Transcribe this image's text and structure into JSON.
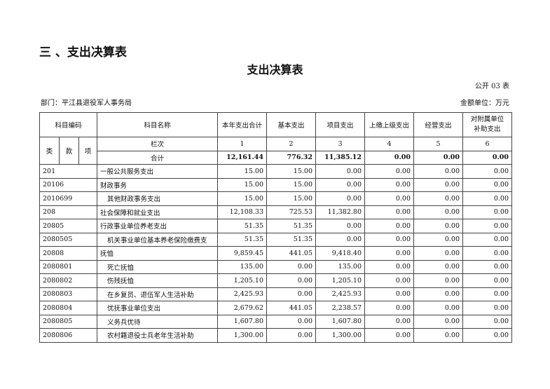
{
  "section_heading": "三 、支出决算表",
  "title": "支出决算表",
  "form_no": "公开 03 表",
  "department": "部门：平江县退役军人事务局",
  "unit": "金额单位：万元",
  "headers": {
    "code": "科目编码",
    "name": "科目名称",
    "lei": "类",
    "kuan": "款",
    "xiang": "项",
    "lanci": "栏次",
    "total_label": "合计",
    "cols": [
      "本年支出合计",
      "基本支出",
      "项目支出",
      "上缴上级支出",
      "经营支出",
      "对附属单位补助支出"
    ],
    "col_nums": [
      "1",
      "2",
      "3",
      "4",
      "5",
      "6"
    ]
  },
  "totals": [
    "12,161.44",
    "776.32",
    "11,385.12",
    "0.00",
    "0.00",
    "0.00"
  ],
  "rows": [
    {
      "code": "201",
      "name": "一般公共服务支出",
      "indent": false,
      "v": [
        "15.00",
        "15.00",
        "0.00",
        "0.00",
        "0.00",
        "0.00"
      ]
    },
    {
      "code": "20106",
      "name": "财政事务",
      "indent": false,
      "v": [
        "15.00",
        "15.00",
        "0.00",
        "0.00",
        "0.00",
        "0.00"
      ]
    },
    {
      "code": "2010699",
      "name": "其他财政事务支出",
      "indent": true,
      "v": [
        "15.00",
        "15.00",
        "0.00",
        "0.00",
        "0.00",
        "0.00"
      ]
    },
    {
      "code": "208",
      "name": "社会保障和就业支出",
      "indent": false,
      "v": [
        "12,108.33",
        "725.53",
        "11,382.80",
        "0.00",
        "0.00",
        "0.00"
      ]
    },
    {
      "code": "20805",
      "name": "行政事业单位养老支出",
      "indent": false,
      "v": [
        "51.35",
        "51.35",
        "0.00",
        "0.00",
        "0.00",
        "0.00"
      ]
    },
    {
      "code": "2080505",
      "name": "机关事业单位基本养老保险缴费支",
      "indent": true,
      "v": [
        "51.35",
        "51.35",
        "0.00",
        "0.00",
        "0.00",
        "0.00"
      ]
    },
    {
      "code": "20808",
      "name": "抚恤",
      "indent": false,
      "v": [
        "9,859.45",
        "441.05",
        "9,418.40",
        "0.00",
        "0.00",
        "0.00"
      ]
    },
    {
      "code": "2080801",
      "name": "死亡抚恤",
      "indent": true,
      "v": [
        "135.00",
        "0.00",
        "135.00",
        "0.00",
        "0.00",
        "0.00"
      ]
    },
    {
      "code": "2080802",
      "name": "伤残抚恤",
      "indent": true,
      "v": [
        "1,205.10",
        "0.00",
        "1,205.10",
        "0.00",
        "0.00",
        "0.00"
      ]
    },
    {
      "code": "2080803",
      "name": "在乡复员、退伍军人生活补助",
      "indent": true,
      "v": [
        "2,425.93",
        "0.00",
        "2,425.93",
        "0.00",
        "0.00",
        "0.00"
      ]
    },
    {
      "code": "2080804",
      "name": "优抚事业单位支出",
      "indent": true,
      "v": [
        "2,679.62",
        "441.05",
        "2,238.57",
        "0.00",
        "0.00",
        "0.00"
      ]
    },
    {
      "code": "2080805",
      "name": "义务兵优待",
      "indent": true,
      "v": [
        "1,607.80",
        "0.00",
        "1,607.80",
        "0.00",
        "0.00",
        "0.00"
      ]
    },
    {
      "code": "2080806",
      "name": "农村籍退役士兵老年生活补助",
      "indent": true,
      "v": [
        "1,300.00",
        "0.00",
        "1,300.00",
        "0.00",
        "0.00",
        "0.00"
      ]
    }
  ]
}
